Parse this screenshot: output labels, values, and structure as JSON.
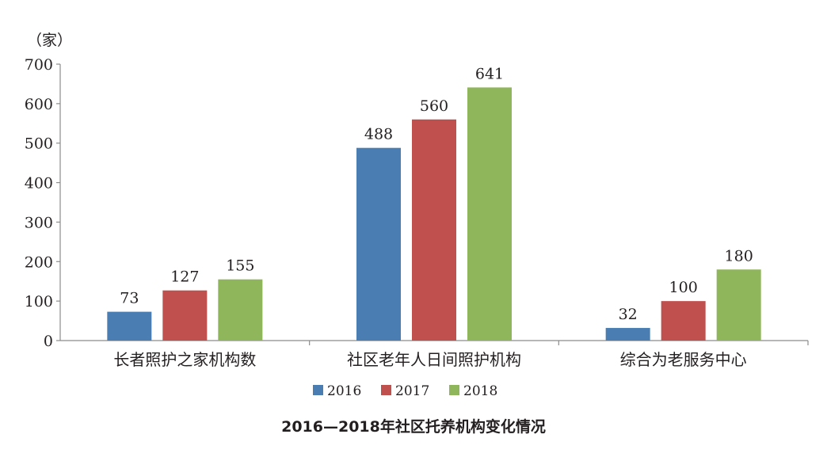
{
  "chart_data": {
    "type": "bar",
    "ylabel": "（家）",
    "ylim": [
      0,
      700
    ],
    "yticks": [
      0,
      100,
      200,
      300,
      400,
      500,
      600,
      700
    ],
    "categories": [
      "长者照护之家机构数",
      "社区老年人日间照护机构",
      "综合为老服务中心"
    ],
    "series": [
      {
        "name": "2016",
        "color": "#4a7eb3",
        "values": [
          73,
          488,
          32
        ]
      },
      {
        "name": "2017",
        "color": "#c0504d",
        "values": [
          127,
          560,
          100
        ]
      },
      {
        "name": "2018",
        "color": "#8fb65a",
        "values": [
          155,
          641,
          180
        ]
      }
    ],
    "legend_position": "bottom",
    "grid": false,
    "title": "2016—2018年社区托养机构变化情况"
  }
}
